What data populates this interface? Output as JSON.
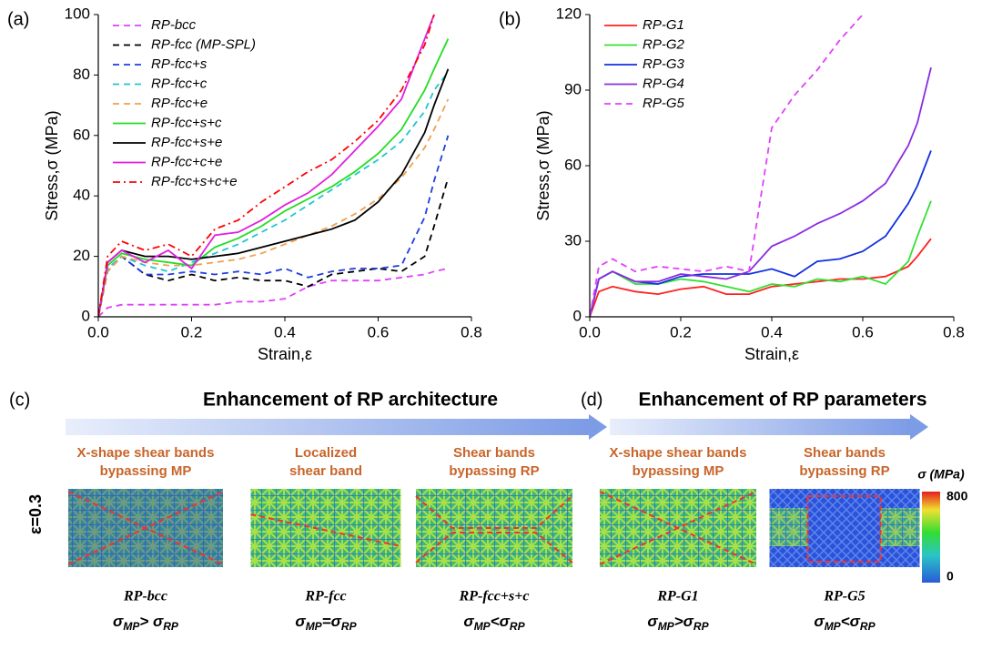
{
  "chart_data": [
    {
      "type": "line",
      "panel_label": "(a)",
      "xlabel": "Strain,ε",
      "ylabel": "Stress,σ (MPa)",
      "xlim": [
        0,
        0.8
      ],
      "xticks": [
        {
          "value": 0,
          "label": "0.0"
        },
        0.2,
        0.4,
        0.6,
        0.8
      ],
      "ylim": [
        0,
        100
      ],
      "yticks": [
        0,
        20,
        40,
        60,
        80,
        100
      ],
      "x": [
        0,
        0.02,
        0.05,
        0.1,
        0.15,
        0.2,
        0.25,
        0.3,
        0.35,
        0.4,
        0.45,
        0.5,
        0.55,
        0.6,
        0.65,
        0.7,
        0.72,
        0.75
      ],
      "legend": "upper left",
      "series": [
        {
          "name": "RP-bcc",
          "color": "#e040fb",
          "linestyle": "dashed",
          "values": [
            0,
            3,
            4,
            4,
            4,
            4,
            4,
            5,
            5,
            6,
            10,
            12,
            12,
            12,
            13,
            14,
            15,
            16
          ]
        },
        {
          "name": "RP-fcc (MP-SPL)",
          "color": "#000000",
          "linestyle": "dashed",
          "values": [
            0,
            15,
            20,
            14,
            12,
            14,
            12,
            13,
            12,
            12,
            10,
            14,
            15,
            16,
            15,
            20,
            30,
            46
          ]
        },
        {
          "name": "RP-fcc+s",
          "color": "#1f3fe0",
          "linestyle": "dashed",
          "values": [
            0,
            16,
            20,
            14,
            14,
            15,
            14,
            15,
            14,
            16,
            13,
            15,
            16,
            16,
            17,
            33,
            45,
            60
          ]
        },
        {
          "name": "RP-fcc+c",
          "color": "#1fc6d0",
          "linestyle": "dashed",
          "values": [
            0,
            16,
            20,
            17,
            15,
            18,
            21,
            24,
            28,
            32,
            37,
            42,
            47,
            52,
            58,
            68,
            75,
            81
          ]
        },
        {
          "name": "RP-fcc+e",
          "color": "#f0a050",
          "linestyle": "dashed",
          "values": [
            0,
            15,
            20,
            18,
            17,
            17,
            18,
            19,
            21,
            24,
            27,
            30,
            34,
            39,
            46,
            56,
            62,
            72
          ]
        },
        {
          "name": "RP-fcc+s+c",
          "color": "#22dd22",
          "linestyle": "solid",
          "values": [
            0,
            17,
            21,
            19,
            18,
            17,
            23,
            26,
            30,
            35,
            39,
            43,
            48,
            54,
            62,
            75,
            82,
            92
          ]
        },
        {
          "name": "RP-fcc+s+e",
          "color": "#000000",
          "linestyle": "solid",
          "values": [
            0,
            18,
            22,
            20,
            20,
            19,
            20,
            21,
            23,
            25,
            27,
            29,
            32,
            38,
            47,
            61,
            70,
            82
          ]
        },
        {
          "name": "RP-fcc+c+e",
          "color": "#e020e0",
          "linestyle": "solid",
          "values": [
            0,
            18,
            22,
            18,
            22,
            16,
            27,
            28,
            32,
            37,
            41,
            47,
            55,
            63,
            72,
            92,
            100,
            null
          ]
        },
        {
          "name": "RP-fcc+s+c+e",
          "color": "#ff0000",
          "linestyle": "dashdot",
          "values": [
            0,
            20,
            25,
            22,
            24,
            20,
            29,
            32,
            38,
            43,
            48,
            52,
            58,
            65,
            75,
            90,
            100,
            null
          ]
        }
      ]
    },
    {
      "type": "line",
      "panel_label": "(b)",
      "xlabel": "Strain,ε",
      "ylabel": "Stress,σ (MPa)",
      "xlim": [
        0,
        0.8
      ],
      "xticks": [
        {
          "value": 0,
          "label": "0.0"
        },
        0.2,
        0.4,
        0.6,
        0.8
      ],
      "ylim": [
        0,
        120
      ],
      "yticks": [
        0,
        30,
        60,
        90,
        120
      ],
      "x": [
        0,
        0.02,
        0.05,
        0.1,
        0.15,
        0.2,
        0.25,
        0.3,
        0.35,
        0.4,
        0.45,
        0.5,
        0.55,
        0.6,
        0.65,
        0.7,
        0.72,
        0.75
      ],
      "legend": "upper left",
      "series": [
        {
          "name": "RP-G1",
          "color": "#ff2020",
          "linestyle": "solid",
          "values": [
            0,
            10,
            12,
            10,
            9,
            11,
            12,
            9,
            9,
            12,
            13,
            14,
            15,
            15,
            16,
            20,
            24,
            31
          ]
        },
        {
          "name": "RP-G2",
          "color": "#33e033",
          "linestyle": "solid",
          "values": [
            0,
            15,
            18,
            13,
            13,
            15,
            14,
            12,
            10,
            13,
            12,
            15,
            14,
            16,
            13,
            22,
            32,
            46
          ]
        },
        {
          "name": "RP-G3",
          "color": "#1030e0",
          "linestyle": "solid",
          "values": [
            0,
            15,
            18,
            14,
            13,
            16,
            17,
            17,
            17,
            19,
            16,
            22,
            23,
            26,
            32,
            45,
            52,
            66
          ]
        },
        {
          "name": "RP-G4",
          "color": "#8a2be2",
          "linestyle": "solid",
          "values": [
            0,
            15,
            18,
            14,
            14,
            17,
            16,
            15,
            18,
            28,
            32,
            37,
            41,
            46,
            53,
            68,
            77,
            99
          ]
        },
        {
          "name": "RP-G5",
          "color": "#e040fb",
          "linestyle": "dashed",
          "values": [
            0,
            20,
            23,
            18,
            20,
            19,
            18,
            20,
            18,
            75,
            88,
            98,
            110,
            120,
            null,
            null,
            null,
            null
          ]
        }
      ]
    }
  ],
  "panels": {
    "c_label": "(c)",
    "c_title": "Enhancement of RP architecture",
    "d_label": "(d)",
    "d_title": "Enhancement of RP parameters",
    "strain": "ε=0.3",
    "colorbar": {
      "title": "σ (MPa)",
      "max": 800,
      "min": 0
    },
    "cases": [
      {
        "note": [
          "X-shape shear bands",
          "bypassing MP"
        ],
        "name": "RP-bcc",
        "formula": [
          "σ",
          "MP",
          "> ",
          "σ",
          "RP"
        ]
      },
      {
        "note": [
          "Localized",
          "shear band"
        ],
        "name": "RP-fcc",
        "formula": [
          "σ",
          "MP",
          "=",
          "σ",
          "RP"
        ]
      },
      {
        "note": [
          "Shear bands",
          "bypassing RP"
        ],
        "name": "RP-fcc+s+c",
        "formula": [
          "σ",
          "MP",
          "<",
          "σ",
          "RP"
        ]
      },
      {
        "note": [
          "X-shape shear bands",
          "bypassing MP"
        ],
        "name": "RP-G1",
        "formula": [
          "σ",
          "MP",
          ">",
          "σ",
          "RP"
        ]
      },
      {
        "note": [
          "Shear bands",
          "bypassing RP"
        ],
        "name": "RP-G5",
        "formula": [
          "σ",
          "MP",
          "<",
          "σ",
          "RP"
        ]
      }
    ]
  }
}
